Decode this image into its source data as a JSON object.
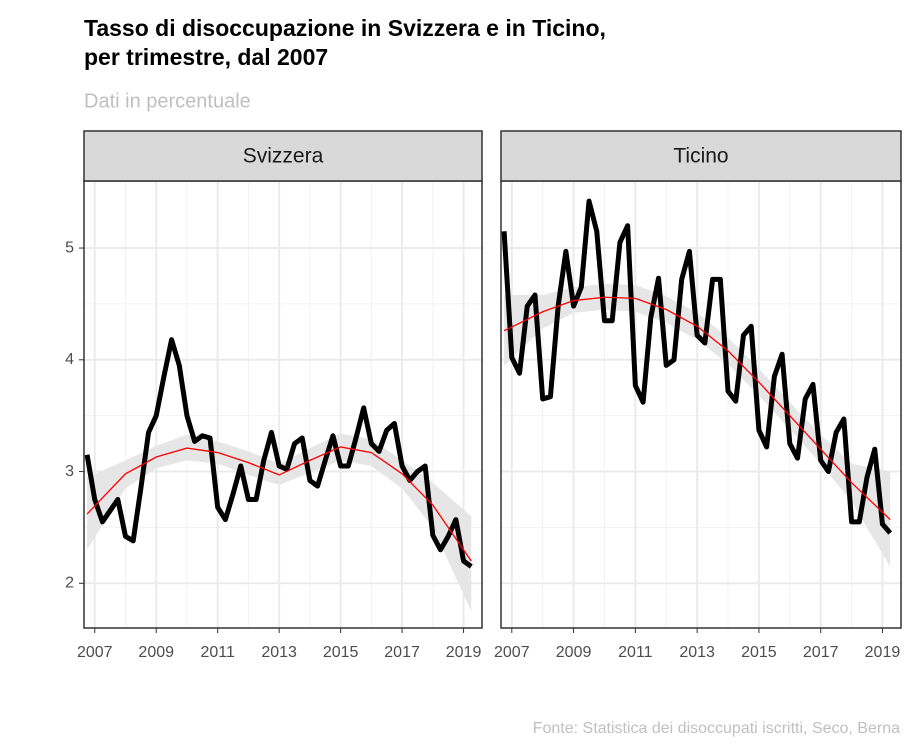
{
  "title": [
    "Tasso di disoccupazione in Svizzera e in Ticino,",
    "per trimestre, dal 2007"
  ],
  "subtitle": "Dati in percentuale",
  "caption": "Fonte: Statistica dei disoccupati iscritti, Seco, Berna",
  "chart_data": [
    {
      "type": "line",
      "strip": "Svizzera",
      "x": [
        2006.75,
        2007,
        2007.25,
        2007.5,
        2007.75,
        2008,
        2008.25,
        2008.5,
        2008.75,
        2009,
        2009.25,
        2009.5,
        2009.75,
        2010,
        2010.25,
        2010.5,
        2010.75,
        2011,
        2011.25,
        2011.5,
        2011.75,
        2012,
        2012.25,
        2012.5,
        2012.75,
        2013,
        2013.25,
        2013.5,
        2013.75,
        2014,
        2014.25,
        2014.5,
        2014.75,
        2015,
        2015.25,
        2015.5,
        2015.75,
        2016,
        2016.25,
        2016.5,
        2016.75,
        2017,
        2017.25,
        2017.5,
        2017.75,
        2018,
        2018.25,
        2018.5,
        2018.75,
        2019,
        2019.25
      ],
      "series": [
        {
          "color": "#000000",
          "values": [
            3.15,
            2.75,
            2.55,
            2.65,
            2.75,
            2.42,
            2.38,
            2.85,
            3.35,
            3.5,
            3.85,
            4.18,
            3.95,
            3.5,
            3.27,
            3.32,
            3.3,
            2.68,
            2.57,
            2.8,
            3.05,
            2.75,
            2.75,
            3.1,
            3.35,
            3.05,
            3.02,
            3.25,
            3.3,
            2.92,
            2.87,
            3.1,
            3.32,
            3.05,
            3.05,
            3.3,
            3.57,
            3.25,
            3.18,
            3.37,
            3.43,
            3.05,
            2.92,
            3.0,
            3.05,
            2.43,
            2.3,
            2.42,
            2.57,
            2.2,
            2.15
          ]
        }
      ],
      "trend": {
        "color": "#ff0000",
        "band_color": "#e6e6e6",
        "x": [
          2006.75,
          2008,
          2009,
          2010,
          2011,
          2012,
          2013,
          2014,
          2015,
          2016,
          2017,
          2018,
          2019.25
        ],
        "values": [
          2.62,
          2.98,
          3.13,
          3.21,
          3.17,
          3.08,
          2.97,
          3.1,
          3.22,
          3.17,
          2.98,
          2.7,
          2.2
        ],
        "lower": [
          2.3,
          2.85,
          3.03,
          3.1,
          3.07,
          2.97,
          2.88,
          2.99,
          3.1,
          3.05,
          2.85,
          2.5,
          1.75
        ],
        "upper": [
          2.95,
          3.1,
          3.23,
          3.33,
          3.27,
          3.18,
          3.07,
          3.21,
          3.34,
          3.29,
          3.1,
          2.9,
          2.6
        ]
      },
      "xlim": [
        2006.65,
        2019.6
      ],
      "ylim": [
        1.6,
        5.6
      ],
      "xticks": [
        2007,
        2009,
        2011,
        2013,
        2015,
        2017,
        2019
      ],
      "yticks": [
        2,
        3,
        4,
        5
      ],
      "grid": true,
      "y_tick_labels": true
    },
    {
      "type": "line",
      "strip": "Ticino",
      "x": [
        2006.75,
        2007,
        2007.25,
        2007.5,
        2007.75,
        2008,
        2008.25,
        2008.5,
        2008.75,
        2009,
        2009.25,
        2009.5,
        2009.75,
        2010,
        2010.25,
        2010.5,
        2010.75,
        2011,
        2011.25,
        2011.5,
        2011.75,
        2012,
        2012.25,
        2012.5,
        2012.75,
        2013,
        2013.25,
        2013.5,
        2013.75,
        2014,
        2014.25,
        2014.5,
        2014.75,
        2015,
        2015.25,
        2015.5,
        2015.75,
        2016,
        2016.25,
        2016.5,
        2016.75,
        2017,
        2017.25,
        2017.5,
        2017.75,
        2018,
        2018.25,
        2018.5,
        2018.75,
        2019,
        2019.25
      ],
      "series": [
        {
          "color": "#000000",
          "values": [
            5.15,
            4.02,
            3.88,
            4.48,
            4.58,
            3.65,
            3.67,
            4.48,
            4.97,
            4.48,
            4.65,
            5.42,
            5.15,
            4.35,
            4.35,
            5.05,
            5.2,
            3.77,
            3.62,
            4.38,
            4.73,
            3.95,
            4.0,
            4.72,
            4.97,
            4.22,
            4.15,
            4.72,
            4.72,
            3.72,
            3.63,
            4.22,
            4.3,
            3.37,
            3.22,
            3.85,
            4.05,
            3.25,
            3.12,
            3.65,
            3.78,
            3.1,
            3.0,
            3.35,
            3.47,
            2.55,
            2.55,
            2.95,
            3.2,
            2.53,
            2.45
          ]
        }
      ],
      "trend": {
        "color": "#ff0000",
        "band_color": "#e6e6e6",
        "x": [
          2006.75,
          2008,
          2009,
          2010,
          2011,
          2012,
          2013,
          2014,
          2015,
          2016,
          2017,
          2018,
          2019.25
        ],
        "values": [
          4.26,
          4.43,
          4.53,
          4.56,
          4.55,
          4.45,
          4.3,
          4.08,
          3.8,
          3.5,
          3.2,
          2.9,
          2.57
        ],
        "lower": [
          3.95,
          4.28,
          4.42,
          4.45,
          4.43,
          4.33,
          4.18,
          3.96,
          3.68,
          3.38,
          3.07,
          2.73,
          2.15
        ],
        "upper": [
          4.58,
          4.58,
          4.65,
          4.68,
          4.67,
          4.57,
          4.42,
          4.2,
          3.92,
          3.62,
          3.33,
          3.07,
          3.0
        ]
      },
      "xlim": [
        2006.65,
        2019.6
      ],
      "ylim": [
        1.6,
        5.6
      ],
      "xticks": [
        2007,
        2009,
        2011,
        2013,
        2015,
        2017,
        2019
      ],
      "yticks": [
        2,
        3,
        4,
        5
      ],
      "grid": true,
      "y_tick_labels": false
    }
  ]
}
